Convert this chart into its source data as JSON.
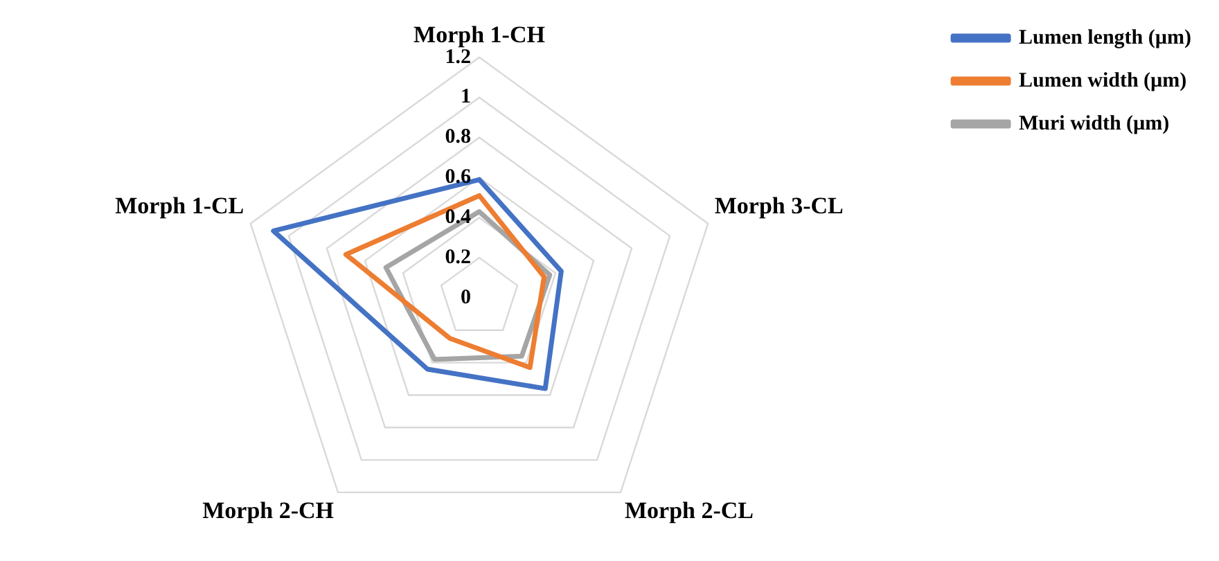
{
  "chart_data": {
    "type": "radar",
    "categories": [
      "Morph 1-CH",
      "Morph 3-CL",
      "Morph 2-CL",
      "Morph 2-CH",
      "Morph 1-CL"
    ],
    "series": [
      {
        "name": "Lumen length (µm)",
        "color": "#4472c4",
        "values": [
          0.59,
          0.43,
          0.56,
          0.44,
          1.08
        ]
      },
      {
        "name": "Lumen width (µm)",
        "color": "#ed7d31",
        "values": [
          0.51,
          0.34,
          0.43,
          0.25,
          0.7
        ]
      },
      {
        "name": "Muri width (µm)",
        "color": "#a5a5a5",
        "values": [
          0.43,
          0.37,
          0.36,
          0.38,
          0.49
        ]
      }
    ],
    "ylim": [
      0,
      1.2
    ],
    "yticks": [
      0,
      0.2,
      0.4,
      0.6,
      0.8,
      1,
      1.2
    ],
    "grid": true,
    "legend": "top right",
    "marker": "none",
    "line_style": "solid"
  }
}
